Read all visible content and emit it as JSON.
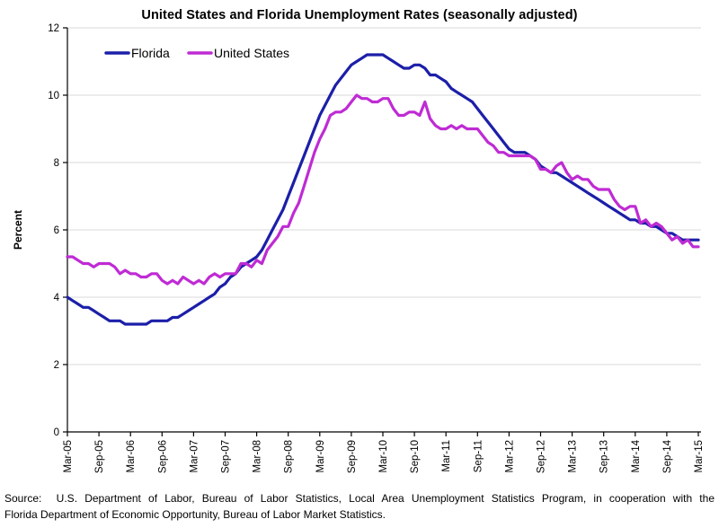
{
  "title": "United States and Florida Unemployment Rates (seasonally adjusted)",
  "source": {
    "line1": "Source:  U.S. Department of Labor, Bureau of Labor Statistics, Local Area Unemployment Statistics Program, in cooperation with the",
    "line2": "Florida Department of Economic Opportunity, Bureau of Labor Market Statistics."
  },
  "chart_data": {
    "type": "line",
    "title": "United States and Florida Unemployment Rates (seasonally adjusted)",
    "xlabel": "",
    "ylabel": "Percent",
    "ylim": [
      0,
      12
    ],
    "ytick_interval": 2,
    "ytick_labels": [
      "0",
      "2",
      "4",
      "6",
      "8",
      "10",
      "12"
    ],
    "grid": "horizontal-light-gray",
    "legend_position": "top-left-inside-horizontal",
    "x_frequency": "monthly",
    "x_start": "Mar-05",
    "x_end": "Mar-15",
    "x_tick_every_n_points": 6,
    "x_tick_labels": [
      "Mar-05",
      "Sep-05",
      "Mar-06",
      "Sep-06",
      "Mar-07",
      "Sep-07",
      "Mar-08",
      "Sep-08",
      "Mar-09",
      "Sep-09",
      "Mar-10",
      "Sep-10",
      "Mar-11",
      "Sep-11",
      "Mar-12",
      "Sep-12",
      "Mar-13",
      "Sep-13",
      "Mar-14",
      "Sep-14",
      "Mar-15"
    ],
    "x_tick_label_rotation_deg": -90,
    "series": [
      {
        "name": "Florida",
        "color": "#1c1fa8",
        "values": [
          4.0,
          3.9,
          3.8,
          3.7,
          3.7,
          3.6,
          3.5,
          3.4,
          3.3,
          3.3,
          3.3,
          3.2,
          3.2,
          3.2,
          3.2,
          3.2,
          3.3,
          3.3,
          3.3,
          3.3,
          3.4,
          3.4,
          3.5,
          3.6,
          3.7,
          3.8,
          3.9,
          4.0,
          4.1,
          4.3,
          4.4,
          4.6,
          4.7,
          4.9,
          5.0,
          5.1,
          5.2,
          5.4,
          5.7,
          6.0,
          6.3,
          6.6,
          7.0,
          7.4,
          7.8,
          8.2,
          8.6,
          9.0,
          9.4,
          9.7,
          10.0,
          10.3,
          10.5,
          10.7,
          10.9,
          11.0,
          11.1,
          11.2,
          11.2,
          11.2,
          11.2,
          11.1,
          11.0,
          10.9,
          10.8,
          10.8,
          10.9,
          10.9,
          10.8,
          10.6,
          10.6,
          10.5,
          10.4,
          10.2,
          10.1,
          10.0,
          9.9,
          9.8,
          9.6,
          9.4,
          9.2,
          9.0,
          8.8,
          8.6,
          8.4,
          8.3,
          8.3,
          8.3,
          8.2,
          8.1,
          7.9,
          7.8,
          7.7,
          7.7,
          7.6,
          7.5,
          7.4,
          7.3,
          7.2,
          7.1,
          7.0,
          6.9,
          6.8,
          6.7,
          6.6,
          6.5,
          6.4,
          6.3,
          6.3,
          6.2,
          6.2,
          6.1,
          6.1,
          6.0,
          5.9,
          5.9,
          5.8,
          5.7,
          5.7,
          5.7,
          5.7
        ]
      },
      {
        "name": "United States",
        "color": "#bf2bd4",
        "values": [
          5.2,
          5.2,
          5.1,
          5.0,
          5.0,
          4.9,
          5.0,
          5.0,
          5.0,
          4.9,
          4.7,
          4.8,
          4.7,
          4.7,
          4.6,
          4.6,
          4.7,
          4.7,
          4.5,
          4.4,
          4.5,
          4.4,
          4.6,
          4.5,
          4.4,
          4.5,
          4.4,
          4.6,
          4.7,
          4.6,
          4.7,
          4.7,
          4.7,
          5.0,
          5.0,
          4.9,
          5.1,
          5.0,
          5.4,
          5.6,
          5.8,
          6.1,
          6.1,
          6.5,
          6.8,
          7.3,
          7.8,
          8.3,
          8.7,
          9.0,
          9.4,
          9.5,
          9.5,
          9.6,
          9.8,
          10.0,
          9.9,
          9.9,
          9.8,
          9.8,
          9.9,
          9.9,
          9.6,
          9.4,
          9.4,
          9.5,
          9.5,
          9.4,
          9.8,
          9.3,
          9.1,
          9.0,
          9.0,
          9.1,
          9.0,
          9.1,
          9.0,
          9.0,
          9.0,
          8.8,
          8.6,
          8.5,
          8.3,
          8.3,
          8.2,
          8.2,
          8.2,
          8.2,
          8.2,
          8.1,
          7.8,
          7.8,
          7.7,
          7.9,
          8.0,
          7.7,
          7.5,
          7.6,
          7.5,
          7.5,
          7.3,
          7.2,
          7.2,
          7.2,
          6.9,
          6.7,
          6.6,
          6.7,
          6.7,
          6.2,
          6.3,
          6.1,
          6.2,
          6.1,
          5.9,
          5.7,
          5.8,
          5.6,
          5.7,
          5.5,
          5.5
        ]
      }
    ],
    "colors": {
      "florida_line": "#1c1fa8",
      "us_line": "#bf2bd4",
      "gridline": "#d9d9d9",
      "axis": "#000000",
      "text": "#000000"
    }
  }
}
